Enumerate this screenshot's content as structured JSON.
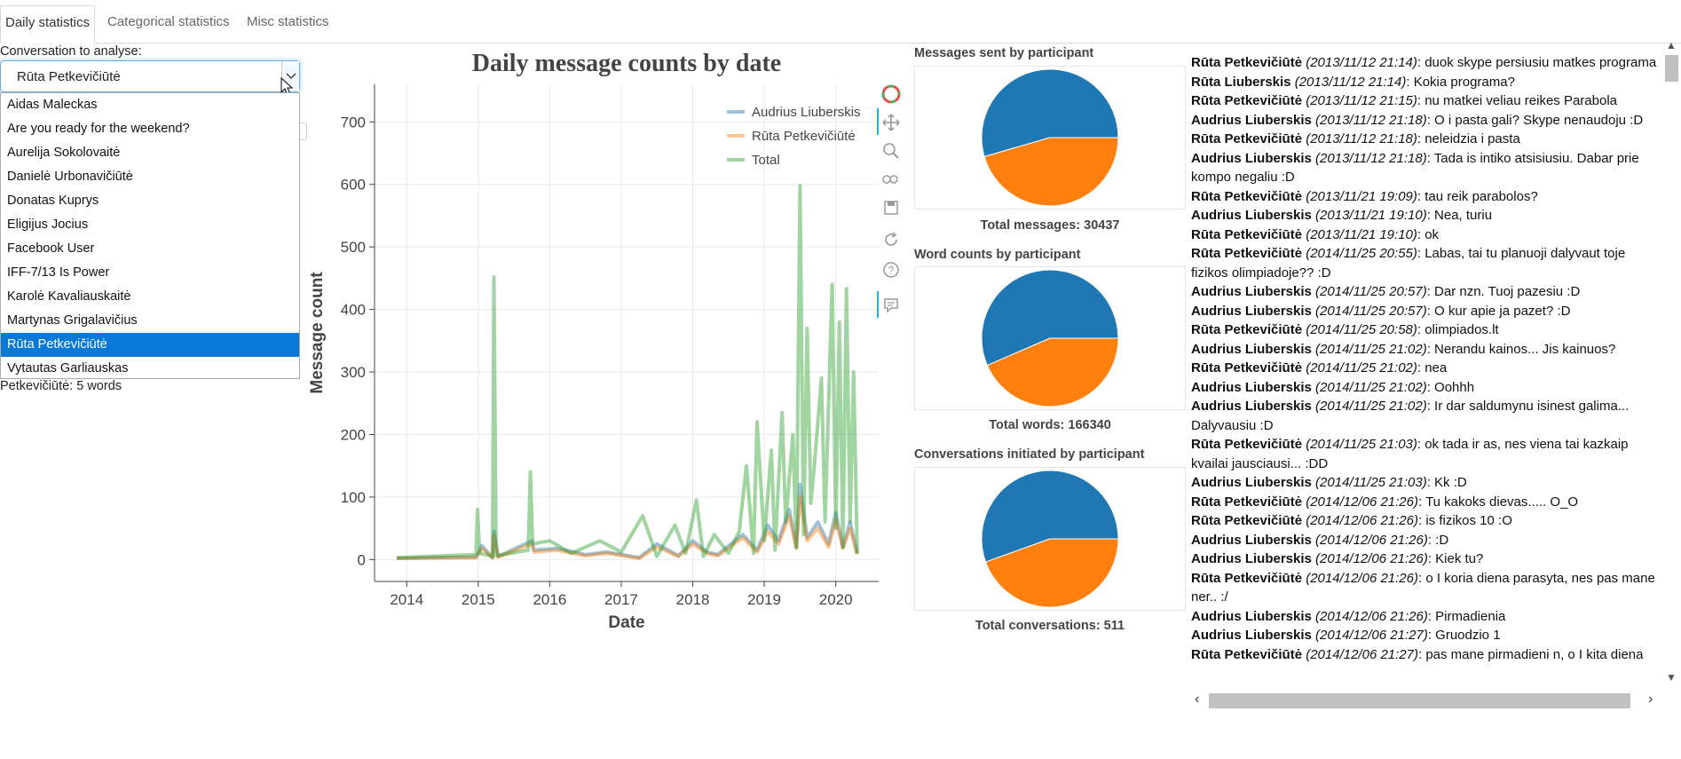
{
  "tabs": [
    {
      "label": "Daily statistics",
      "active": true
    },
    {
      "label": "Categorical statistics",
      "active": false
    },
    {
      "label": "Misc statistics",
      "active": false
    }
  ],
  "conversation": {
    "label": "Conversation to analyse:",
    "selected": "Rūta Petkevičiūtė",
    "options": [
      "Aidas Maleckas",
      "Are you ready for the weekend?",
      "Aurelija Sokolovaitė",
      "Danielė Urbonavičiūtė",
      "Donatas Kuprys",
      "Eligijus Jocius",
      "Facebook User",
      "IFF-7/13 Is Power",
      "Karolė Kavaliauskaitė",
      "Martynas Grigalavičius",
      "Rūta Petkevičiūtė",
      "Vytautas Garliauskas"
    ],
    "below_text": "Petkevičiūtė: 5 words"
  },
  "chart_data": {
    "type": "line",
    "title": "Daily message counts by date",
    "xlabel": "Date",
    "ylabel": "Message count",
    "xlim": [
      2013.55,
      2020.6
    ],
    "ylim": [
      -35,
      760
    ],
    "x_ticks": [
      "2014",
      "2015",
      "2016",
      "2017",
      "2018",
      "2019",
      "2020"
    ],
    "y_ticks": [
      0,
      100,
      200,
      300,
      400,
      500,
      600,
      700
    ],
    "grid": true,
    "legend_position": "top-right",
    "series": [
      {
        "name": "Audrius Liuberskis",
        "color": "#1f77b4",
        "x": [
          2013.86,
          2014.97,
          2015.05,
          2015.2,
          2015.22,
          2015.28,
          2015.75,
          2015.78,
          2016.1,
          2016.5,
          2016.8,
          2017.25,
          2017.5,
          2017.8,
          2018.0,
          2018.2,
          2018.35,
          2018.7,
          2018.9,
          2019.05,
          2019.2,
          2019.35,
          2019.45,
          2019.5,
          2019.6,
          2019.75,
          2019.9,
          2020.0,
          2020.1,
          2020.2,
          2020.3
        ],
        "y": [
          2,
          4,
          22,
          3,
          45,
          5,
          30,
          15,
          18,
          8,
          12,
          3,
          25,
          6,
          30,
          12,
          8,
          40,
          15,
          55,
          30,
          80,
          20,
          120,
          35,
          60,
          25,
          75,
          20,
          60,
          10
        ]
      },
      {
        "name": "Rūta Petkevičiūtė",
        "color": "#ff7f0e",
        "x": [
          2013.86,
          2014.97,
          2015.05,
          2015.2,
          2015.22,
          2015.28,
          2015.75,
          2015.78,
          2016.1,
          2016.5,
          2016.8,
          2017.25,
          2017.5,
          2017.8,
          2018.0,
          2018.2,
          2018.35,
          2018.7,
          2018.9,
          2019.05,
          2019.2,
          2019.35,
          2019.45,
          2019.5,
          2019.6,
          2019.75,
          2019.9,
          2020.0,
          2020.1,
          2020.2,
          2020.3
        ],
        "y": [
          2,
          3,
          18,
          3,
          40,
          4,
          25,
          12,
          15,
          6,
          10,
          2,
          20,
          5,
          25,
          10,
          6,
          35,
          12,
          45,
          25,
          70,
          18,
          100,
          30,
          50,
          20,
          65,
          18,
          50,
          8
        ]
      },
      {
        "name": "Total",
        "color": "#2ca02c",
        "x": [
          2013.86,
          2014.97,
          2014.99,
          2015.02,
          2015.2,
          2015.22,
          2015.25,
          2015.7,
          2015.73,
          2015.76,
          2016.0,
          2016.3,
          2016.7,
          2017.0,
          2017.3,
          2017.5,
          2017.75,
          2017.9,
          2018.05,
          2018.15,
          2018.3,
          2018.5,
          2018.65,
          2018.75,
          2018.85,
          2018.9,
          2019.0,
          2019.1,
          2019.15,
          2019.25,
          2019.3,
          2019.4,
          2019.45,
          2019.5,
          2019.55,
          2019.6,
          2019.65,
          2019.7,
          2019.8,
          2019.85,
          2019.95,
          2020.0,
          2020.05,
          2020.1,
          2020.15,
          2020.2,
          2020.25,
          2020.3
        ],
        "y": [
          3,
          8,
          80,
          10,
          5,
          452,
          6,
          15,
          140,
          25,
          30,
          10,
          30,
          12,
          70,
          5,
          55,
          10,
          95,
          5,
          40,
          10,
          45,
          150,
          10,
          220,
          30,
          175,
          15,
          235,
          60,
          200,
          20,
          598,
          40,
          370,
          90,
          150,
          290,
          60,
          440,
          50,
          380,
          20,
          433,
          60,
          300,
          10
        ]
      }
    ]
  },
  "pies": [
    {
      "title": "Messages sent by participant",
      "caption": "Total messages: 30437",
      "values": [
        0.545,
        0.455
      ],
      "colors": [
        "#1f77b4",
        "#ff7f0e"
      ]
    },
    {
      "title": "Word counts by participant",
      "caption": "Total words: 166340",
      "values": [
        0.565,
        0.435
      ],
      "colors": [
        "#1f77b4",
        "#ff7f0e"
      ]
    },
    {
      "title": "Conversations initiated by participant",
      "caption": "Total conversations: 511",
      "values": [
        0.555,
        0.445
      ],
      "colors": [
        "#1f77b4",
        "#ff7f0e"
      ]
    }
  ],
  "messages": [
    {
      "sender": "Rūta Petkevičiūtė",
      "time": "(2013/11/12 21:14)",
      "text": ": duok skype persiusiu matkes programa"
    },
    {
      "sender": "Rūta Liuberskis",
      "time": "(2013/11/12 21:14)",
      "text": ": Kokia programa?"
    },
    {
      "sender": "Rūta Petkevičiūtė",
      "time": "(2013/11/12 21:15)",
      "text": ": nu matkei veliau reikes Parabola"
    },
    {
      "sender": "Audrius Liuberskis",
      "time": "(2013/11/12 21:18)",
      "text": ": O i pasta gali? Skype nenaudoju :D"
    },
    {
      "sender": "Rūta Petkevičiūtė",
      "time": "(2013/11/12 21:18)",
      "text": ": neleidzia i pasta"
    },
    {
      "sender": "Audrius Liuberskis",
      "time": "(2013/11/12 21:18)",
      "text": ": Tada is intiko atsisiusiu. Dabar prie kompo negaliu :D"
    },
    {
      "sender": "Rūta Petkevičiūtė",
      "time": "(2013/11/21 19:09)",
      "text": ": tau reik parabolos?"
    },
    {
      "sender": "Audrius Liuberskis",
      "time": "(2013/11/21 19:10)",
      "text": ": Nea, turiu"
    },
    {
      "sender": "Rūta Petkevičiūtė",
      "time": "(2013/11/21 19:10)",
      "text": ": ok"
    },
    {
      "sender": "Rūta Petkevičiūtė",
      "time": "(2014/11/25 20:55)",
      "text": ": Labas, tai tu planuoji dalyvaut toje fizikos olimpiadoje?? :D"
    },
    {
      "sender": "Audrius Liuberskis",
      "time": "(2014/11/25 20:57)",
      "text": ": Dar nzn. Tuoj pazesiu :D"
    },
    {
      "sender": "Audrius Liuberskis",
      "time": "(2014/11/25 20:57)",
      "text": ": O kur apie ja pazet? :D"
    },
    {
      "sender": "Rūta Petkevičiūtė",
      "time": "(2014/11/25 20:58)",
      "text": ": olimpiados.lt"
    },
    {
      "sender": "Audrius Liuberskis",
      "time": "(2014/11/25 21:02)",
      "text": ": Nerandu kainos... Jis kainuos?"
    },
    {
      "sender": "Rūta Petkevičiūtė",
      "time": "(2014/11/25 21:02)",
      "text": ": nea"
    },
    {
      "sender": "Audrius Liuberskis",
      "time": "(2014/11/25 21:02)",
      "text": ": Oohhh"
    },
    {
      "sender": "Audrius Liuberskis",
      "time": "(2014/11/25 21:02)",
      "text": ": Ir dar saldumynu isinest galima... Dalyvausiu :D"
    },
    {
      "sender": "Rūta Petkevičiūtė",
      "time": "(2014/11/25 21:03)",
      "text": ": ok tada ir as, nes viena tai kazkaip kvailai jausciausi... :DD"
    },
    {
      "sender": "Audrius Liuberskis",
      "time": "(2014/11/25 21:03)",
      "text": ": Kk :D"
    },
    {
      "sender": "Rūta Petkevičiūtė",
      "time": "(2014/12/06 21:26)",
      "text": ": Tu kakoks dievas..... O_O"
    },
    {
      "sender": "Rūta Petkevičiūtė",
      "time": "(2014/12/06 21:26)",
      "text": ": is fizikos 10 :O"
    },
    {
      "sender": "Audrius Liuberskis",
      "time": "(2014/12/06 21:26)",
      "text": ": :D"
    },
    {
      "sender": "Audrius Liuberskis",
      "time": "(2014/12/06 21:26)",
      "text": ": Kiek tu?"
    },
    {
      "sender": "Rūta Petkevičiūtė",
      "time": "(2014/12/06 21:26)",
      "text": ": o I koria diena parasyta, nes pas mane ner.. :/"
    },
    {
      "sender": "Audrius Liuberskis",
      "time": "(2014/12/06 21:26)",
      "text": ": Pirmadienia"
    },
    {
      "sender": "Audrius Liuberskis",
      "time": "(2014/12/06 21:27)",
      "text": ": Gruodzio 1"
    },
    {
      "sender": "Rūta Petkevičiūtė",
      "time": "(2014/12/06 21:27)",
      "text": ": pas mane pirmadieni n, o I kita diena"
    }
  ],
  "toolbar_icons": [
    "bokeh-logo-icon",
    "pan-icon",
    "box-zoom-icon",
    "wheel-zoom-icon",
    "save-icon",
    "reset-icon",
    "help-icon",
    "hover-icon"
  ]
}
